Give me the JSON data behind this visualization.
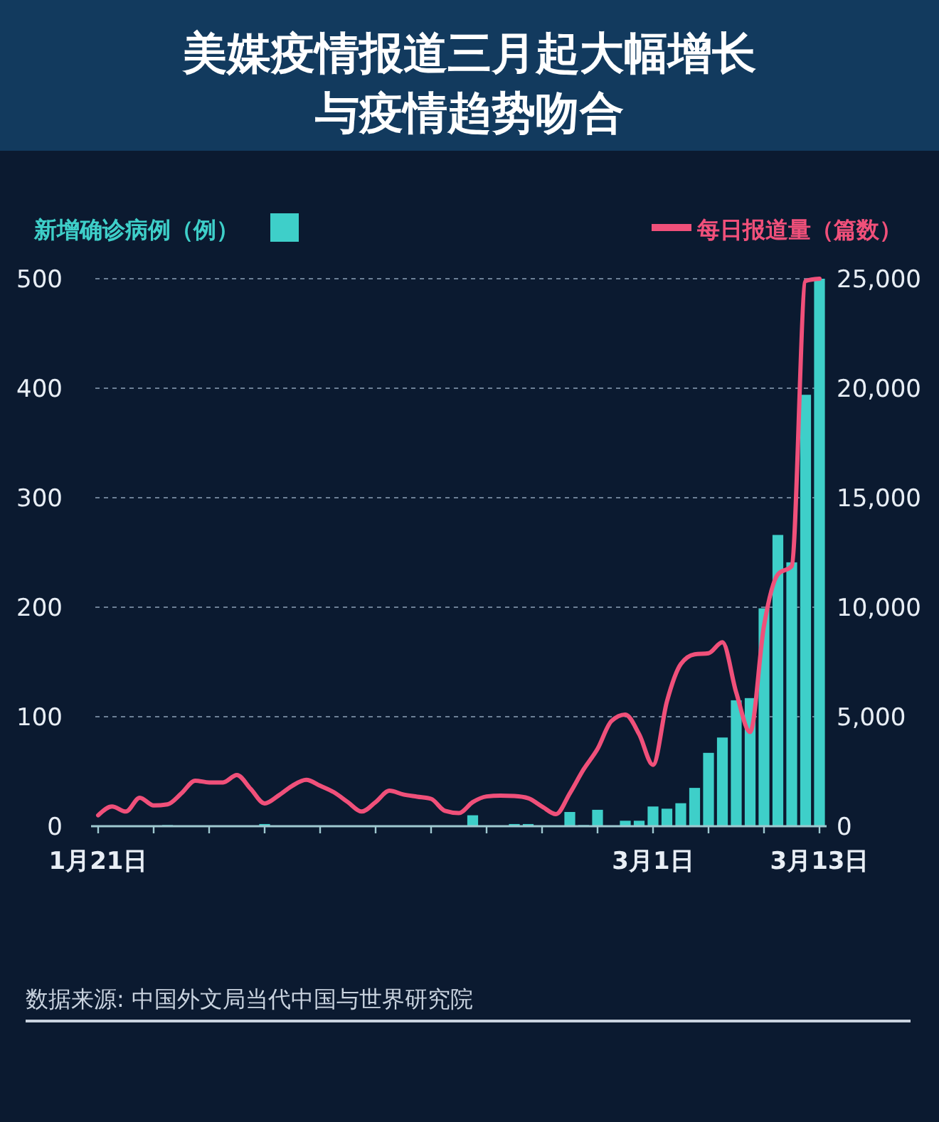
{
  "chart_data": {
    "type": "bar",
    "title": "美媒疫情报道三月起大幅增长与疫情趋势吻合",
    "x": [
      "--01-21",
      "--01-22",
      "--01-23",
      "--01-24",
      "--01-25",
      "--01-26",
      "--01-27",
      "--01-28",
      "--01-29",
      "--01-30",
      "--01-31",
      "--02-01",
      "--02-02",
      "--02-03",
      "--02-04",
      "--02-05",
      "--02-06",
      "--02-07",
      "--02-08",
      "--02-09",
      "--02-10",
      "--02-11",
      "--02-12",
      "--02-13",
      "--02-14",
      "--02-15",
      "--02-16",
      "--02-17",
      "--02-18",
      "--02-19",
      "--02-20",
      "--02-21",
      "--02-22",
      "--02-23",
      "--02-24",
      "--02-25",
      "--02-26",
      "--02-27",
      "--02-28",
      "--02-29",
      "--03-01",
      "--03-02",
      "--03-03",
      "--03-04",
      "--03-05",
      "--03-06",
      "--03-07",
      "--03-08",
      "--03-09",
      "--03-10",
      "--03-11",
      "--03-12",
      "--03-13"
    ],
    "series": [
      {
        "name": "新增确诊病例（例）",
        "color": "#3ecfc9",
        "values": [
          0,
          0,
          0,
          0,
          0,
          1,
          0,
          0,
          0,
          0,
          0,
          0,
          2,
          0,
          0,
          0,
          0,
          0,
          0,
          0,
          0,
          0,
          0,
          0,
          0,
          0,
          0,
          10,
          0,
          0,
          2,
          2,
          0,
          0,
          13,
          1,
          15,
          0,
          5,
          5,
          18,
          16,
          21,
          35,
          67,
          81,
          115,
          117,
          199,
          266,
          241,
          394,
          500
        ]
      },
      {
        "name": "每日报道量（篇数）",
        "type": "line",
        "axis": "y2",
        "color": "#f0507a",
        "values": [
          500,
          900,
          670,
          1300,
          950,
          1000,
          1500,
          2080,
          2000,
          2000,
          2340,
          1700,
          1040,
          1400,
          1850,
          2120,
          1850,
          1550,
          1100,
          670,
          1100,
          1620,
          1450,
          1350,
          1250,
          700,
          600,
          1100,
          1360,
          1400,
          1380,
          1280,
          900,
          550,
          1500,
          2600,
          3530,
          4800,
          5100,
          4200,
          2800,
          5690,
          7400,
          7850,
          7900,
          8400,
          6100,
          4300,
          9160,
          11500,
          11880,
          24900,
          25000
        ]
      }
    ],
    "xlim": [
      "--01-21",
      "--03-13"
    ],
    "xticks": [
      {
        "value": "--01-21",
        "label": "1月21日"
      },
      {
        "value": "--01-25",
        "label": null
      },
      {
        "value": "--01-29",
        "label": null
      },
      {
        "value": "--02-02",
        "label": null
      },
      {
        "value": "--02-06",
        "label": null
      },
      {
        "value": "--02-10",
        "label": null
      },
      {
        "value": "--02-14",
        "label": null
      },
      {
        "value": "--02-18",
        "label": null
      },
      {
        "value": "--02-22",
        "label": null
      },
      {
        "value": "--02-26",
        "label": null
      },
      {
        "value": "--03-01",
        "label": "3月1日"
      },
      {
        "value": "--03-05",
        "label": null
      },
      {
        "value": "--03-09",
        "label": null
      },
      {
        "value": "--03-13",
        "label": "3月13日"
      }
    ],
    "ylim": [
      0,
      500
    ],
    "yticks": [
      0,
      100,
      200,
      300,
      400,
      500
    ],
    "y2lim": [
      0,
      25000
    ],
    "y2ticks": [
      {
        "value": 0,
        "label": "0"
      },
      {
        "value": 5000,
        "label": "5,000"
      },
      {
        "value": 10000,
        "label": "10,000"
      },
      {
        "value": 15000,
        "label": "15,000"
      },
      {
        "value": 20000,
        "label": "20,000"
      },
      {
        "value": 25000,
        "label": "25,000"
      }
    ],
    "grid": "y",
    "legend": "top",
    "marker": "none",
    "line_style": "solid",
    "annotations": [
      "数据来源: 中国外文局当代中国与世界研究院"
    ]
  }
}
